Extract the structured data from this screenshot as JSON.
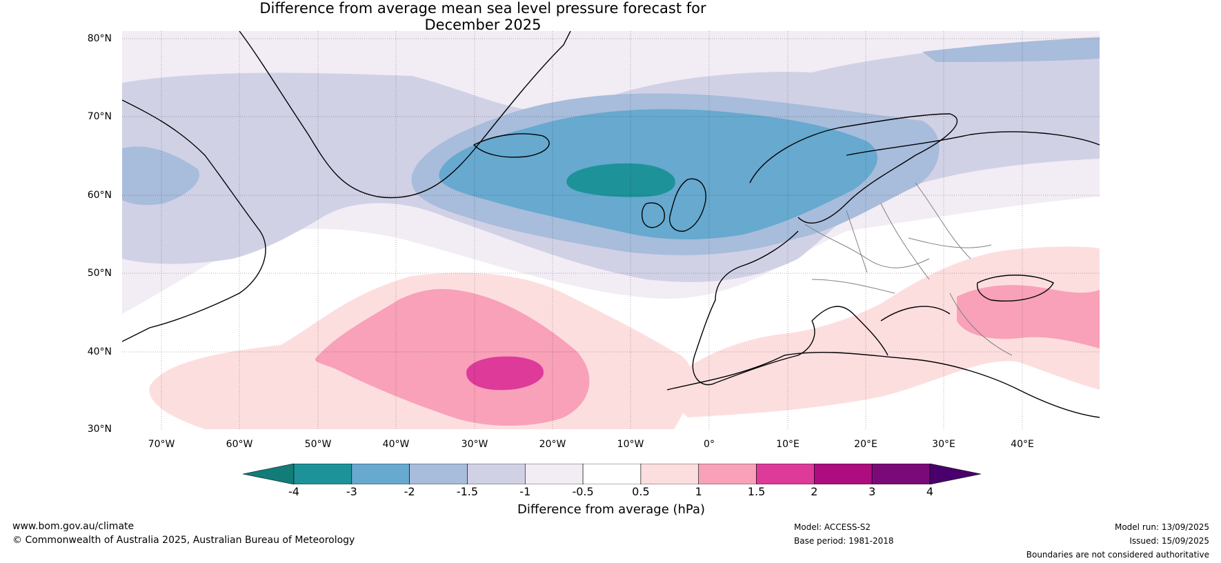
{
  "title": {
    "line1": "Difference from average mean sea level pressure forecast for",
    "line2": "December 2025"
  },
  "map": {
    "region": "North Atlantic and Europe",
    "lat_labels": [
      "80°N",
      "70°N",
      "60°N",
      "50°N",
      "40°N",
      "30°N"
    ],
    "lon_labels": [
      "70°W",
      "60°W",
      "50°W",
      "40°W",
      "30°W",
      "20°W",
      "10°W",
      "0°",
      "10°E",
      "20°E",
      "30°E",
      "40°E"
    ],
    "anomaly_features": [
      {
        "name": "low-pressure-centre",
        "label": "below -3 hPa",
        "near": "south of Iceland"
      },
      {
        "name": "high-pressure-centre",
        "label": "above 1.5 hPa",
        "near": "west of Azores"
      },
      {
        "name": "high-pressure-east",
        "label": "1 to 1.5 hPa",
        "near": "Black Sea"
      }
    ]
  },
  "colorbar": {
    "labels": [
      "-4",
      "-3",
      "-2",
      "-1.5",
      "-1",
      "-0.5",
      "0.5",
      "1",
      "1.5",
      "2",
      "3",
      "4"
    ],
    "colors": [
      "#127c78",
      "#1d9399",
      "#67a9cf",
      "#a8bcdb",
      "#d1d1e6",
      "#f2ecf5",
      "#ffffff",
      "#fddedf",
      "#f8a1b9",
      "#dd3a9a",
      "#ad0d7e",
      "#7b0a79",
      "#4a006c"
    ],
    "title": "Difference from average (hPa)"
  },
  "footer": {
    "website": "www.bom.gov.au/climate",
    "copyright": "© Commonwealth of Australia 2025, Australian Bureau of Meteorology",
    "model": "Model: ACCESS-S2",
    "base_period": "Base period: 1981-2018",
    "model_run": "Model run: 13/09/2025",
    "issued": "Issued: 15/09/2025",
    "disclaimer": "Boundaries are not considered authoritative"
  }
}
